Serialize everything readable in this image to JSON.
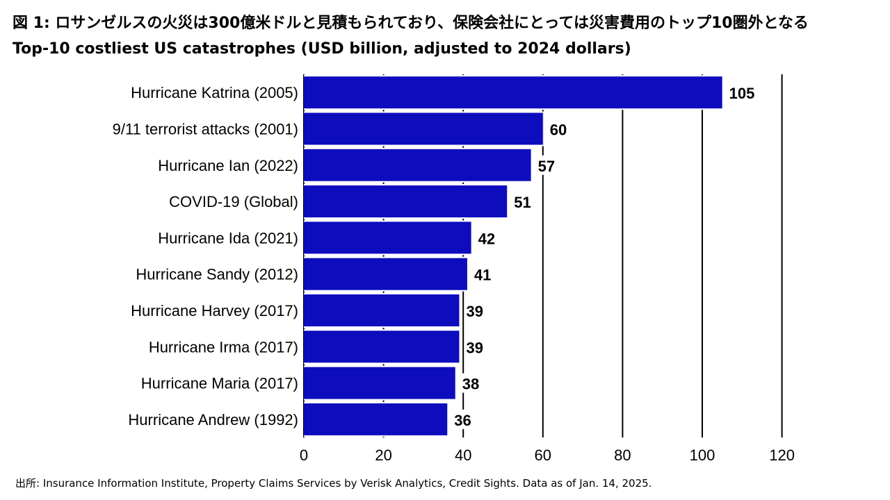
{
  "header": {
    "title": "図 1: ロサンゼルスの火災は300億米ドルと見積もられており、保険会社にとっては災害費用のトップ10圏外となる",
    "subtitle": "Top-10 costliest US catastrophes (USD billion, adjusted to 2024 dollars)"
  },
  "footer": {
    "source": "出所: Insurance Information Institute, Property Claims Services by Verisk Analytics, Credit Sights. Data as of Jan. 14, 2025."
  },
  "chart_data": {
    "type": "bar",
    "orientation": "horizontal",
    "categories": [
      "Hurricane Katrina (2005)",
      "9/11 terrorist attacks (2001)",
      "Hurricane Ian (2022)",
      "COVID-19 (Global)",
      "Hurricane Ida (2021)",
      "Hurricane Sandy (2012)",
      "Hurricane Harvey (2017)",
      "Hurricane Irma (2017)",
      "Hurricane Maria (2017)",
      "Hurricane Andrew (1992)"
    ],
    "values": [
      105,
      60,
      57,
      51,
      42,
      41,
      39,
      39,
      38,
      36
    ],
    "data_labels": [
      "105",
      "60",
      "57",
      "51",
      "42",
      "41",
      "39",
      "39",
      "38",
      "36"
    ],
    "xlim": [
      0,
      120
    ],
    "xticks": [
      0,
      20,
      40,
      60,
      80,
      100,
      120
    ],
    "xtick_labels": [
      "0",
      "20",
      "40",
      "60",
      "80",
      "100",
      "120"
    ],
    "grid": "vertical",
    "legend": "none",
    "bar_color": "#0d0dbd"
  }
}
